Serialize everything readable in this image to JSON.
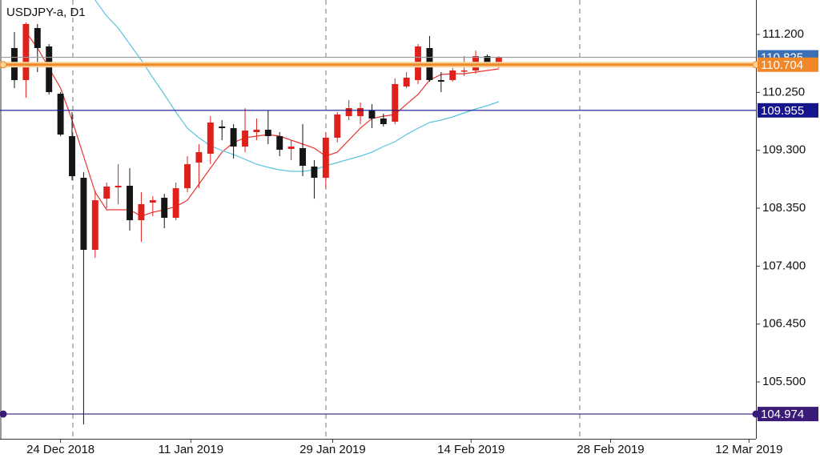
{
  "chart_data": {
    "type": "candlestick",
    "title": "USDJPY-a, D1",
    "up_color": "#e0201b",
    "down_color": "#151515",
    "open": [
      110.977,
      110.451,
      111.305,
      111.003,
      110.228,
      109.532,
      108.849,
      107.667,
      108.507,
      108.691,
      108.718,
      108.153,
      108.442,
      108.521,
      108.193,
      108.678,
      109.099,
      109.243,
      109.69,
      109.663,
      109.361,
      109.598,
      109.637,
      109.532,
      109.322,
      109.335,
      109.033,
      108.849,
      109.506,
      109.86,
      109.86,
      109.952,
      109.821,
      109.769,
      110.346,
      110.451,
      110.977,
      110.451,
      110.451,
      110.596,
      110.609,
      110.845,
      110.74
    ],
    "high": [
      111.24,
      111.397,
      111.371,
      111.042,
      110.254,
      109.926,
      108.941,
      108.639,
      108.77,
      109.072,
      109.007,
      108.613,
      108.547,
      108.587,
      108.77,
      109.204,
      109.401,
      109.86,
      109.795,
      109.729,
      109.992,
      109.821,
      109.952,
      109.598,
      109.466,
      109.729,
      109.138,
      109.598,
      109.926,
      110.123,
      110.084,
      110.057,
      109.9,
      110.478,
      110.583,
      111.042,
      111.174,
      110.583,
      110.649,
      110.845,
      110.937,
      110.872,
      110.845
    ],
    "low": [
      110.32,
      110.162,
      110.583,
      110.215,
      109.532,
      108.81,
      104.804,
      107.536,
      108.35,
      108.415,
      107.983,
      107.798,
      108.219,
      108.022,
      108.153,
      108.613,
      108.678,
      109.072,
      109.466,
      109.164,
      109.269,
      109.466,
      109.401,
      109.204,
      109.138,
      108.875,
      108.507,
      108.678,
      109.427,
      109.795,
      109.729,
      109.664,
      109.69,
      109.729,
      110.32,
      110.386,
      110.425,
      110.254,
      110.425,
      110.517,
      110.556,
      110.714,
      110.648
    ],
    "close": [
      110.451,
      111.371,
      110.977,
      110.254,
      109.558,
      108.875,
      107.667,
      108.481,
      108.705,
      108.718,
      108.153,
      108.416,
      108.481,
      108.193,
      108.678,
      109.072,
      109.27,
      109.755,
      109.663,
      109.361,
      109.624,
      109.637,
      109.532,
      109.309,
      109.361,
      109.046,
      108.849,
      109.506,
      109.887,
      109.992,
      109.992,
      109.821,
      109.729,
      110.386,
      110.491,
      111.003,
      110.451,
      110.425,
      110.609,
      110.609,
      110.845,
      110.74,
      110.819
    ],
    "series": [
      {
        "color": "#e8352e",
        "values": [
          null,
          111.239,
          110.977,
          110.648,
          110.32,
          109.795,
          109.204,
          108.613,
          108.324,
          108.324,
          108.324,
          108.219,
          108.284,
          108.324,
          108.376,
          108.481,
          108.744,
          109.007,
          109.269,
          109.427,
          109.506,
          109.532,
          109.558,
          109.532,
          109.466,
          109.401,
          109.335,
          109.204,
          109.269,
          109.466,
          109.663,
          109.821,
          109.86,
          109.887,
          110.057,
          110.215,
          110.451,
          110.543,
          110.556,
          110.556,
          110.583,
          110.609,
          110.635
        ]
      },
      {
        "color": "#5bc4e0",
        "values": [
          null,
          null,
          null,
          null,
          null,
          null,
          null,
          111.765,
          111.502,
          111.305,
          111.042,
          110.78,
          110.491,
          110.215,
          109.926,
          109.663,
          109.506,
          109.374,
          109.296,
          109.23,
          109.151,
          109.072,
          109.02,
          108.98,
          108.954,
          108.954,
          108.98,
          109.046,
          109.099,
          109.151,
          109.204,
          109.269,
          109.361,
          109.44,
          109.558,
          109.663,
          109.755,
          109.795,
          109.847,
          109.913,
          109.979,
          110.031,
          110.097
        ]
      }
    ],
    "levels": [
      {
        "value": 110.825,
        "color": "#3b6fb6"
      },
      {
        "value": 110.704,
        "color": "#f0882a"
      },
      {
        "value": 109.955,
        "color": "#14148c"
      },
      {
        "value": 104.974,
        "color": "#3a1c78"
      }
    ],
    "ylim": [
      104.568,
      111.765
    ],
    "yticks": [
      {
        "value": 111.2,
        "label": "111.200"
      },
      {
        "value": 110.25,
        "label": "110.250"
      },
      {
        "value": 109.3,
        "label": "109.300"
      },
      {
        "value": 108.35,
        "label": "108.350"
      },
      {
        "value": 107.4,
        "label": "107.400"
      },
      {
        "value": 106.45,
        "label": "106.450"
      },
      {
        "value": 105.5,
        "label": "105.500"
      }
    ],
    "xlim": [
      -1.25,
      64.3
    ],
    "xticks": [
      {
        "value": 4,
        "label": "24 Dec 2018"
      },
      {
        "value": 15.3,
        "label": "11 Jan 2019"
      },
      {
        "value": 27.6,
        "label": "29 Jan 2019"
      },
      {
        "value": 39.6,
        "label": "14 Feb 2019"
      },
      {
        "value": 51.7,
        "label": "28 Feb 2019"
      },
      {
        "value": 63.7,
        "label": "12 Mar 2019"
      }
    ]
  }
}
